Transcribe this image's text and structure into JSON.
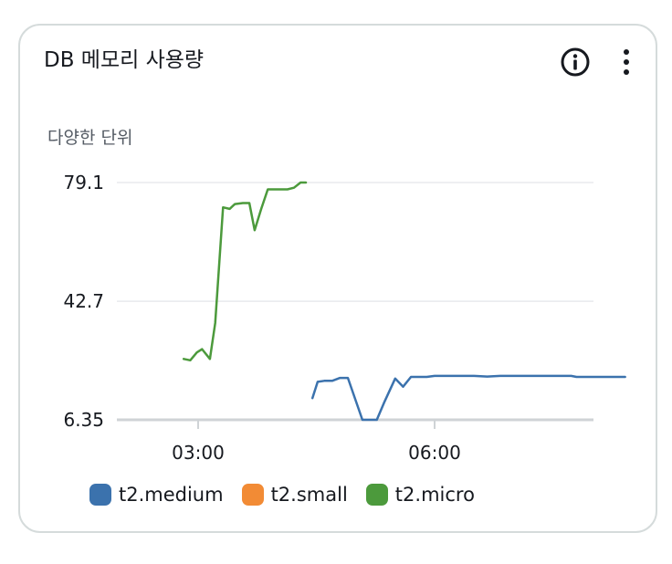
{
  "card": {
    "title": "DB 메모리 사용량",
    "unit_label": "다양한 단위"
  },
  "icons": {
    "info": "info-circle-icon",
    "more": "vertical-ellipsis-icon"
  },
  "colors": {
    "t2.medium": "#3b72ad",
    "t2.small": "#f28b35",
    "t2.micro": "#4c9a3c",
    "grid": "#e8eaed",
    "baseline": "#cfd3d6",
    "axis_text": "#16191f"
  },
  "chart_data": {
    "type": "line",
    "title": "DB 메모리 사용량",
    "ylabel": "다양한 단위",
    "ylim": [
      6.35,
      79.1
    ],
    "y_ticks": [
      "79.1",
      "42.7",
      "6.35"
    ],
    "x_ticks": [
      "03:00",
      "06:00"
    ],
    "grid": true,
    "legend_position": "bottom",
    "legend": [
      "t2.medium",
      "t2.small",
      "t2.micro"
    ],
    "series": [
      {
        "name": "t2.medium",
        "points": [
          [
            "04:27",
            13.0
          ],
          [
            "04:31",
            18.0
          ],
          [
            "04:36",
            18.3
          ],
          [
            "04:42",
            18.3
          ],
          [
            "04:48",
            19.2
          ],
          [
            "04:54",
            19.2
          ],
          [
            "05:05",
            6.35
          ],
          [
            "05:16",
            6.35
          ],
          [
            "05:22",
            12.0
          ],
          [
            "05:30",
            19.0
          ],
          [
            "05:36",
            16.5
          ],
          [
            "05:42",
            19.5
          ],
          [
            "05:48",
            19.5
          ],
          [
            "05:54",
            19.5
          ],
          [
            "06:00",
            19.8
          ],
          [
            "06:10",
            19.8
          ],
          [
            "06:20",
            19.8
          ],
          [
            "06:30",
            19.8
          ],
          [
            "06:40",
            19.6
          ],
          [
            "06:50",
            19.8
          ],
          [
            "07:10",
            19.8
          ],
          [
            "07:30",
            19.8
          ],
          [
            "07:44",
            19.8
          ],
          [
            "07:48",
            19.5
          ],
          [
            "08:10",
            19.5
          ],
          [
            "08:25",
            19.5
          ]
        ]
      },
      {
        "name": "t2.small",
        "points": []
      },
      {
        "name": "t2.micro",
        "points": [
          [
            "02:49",
            25.0
          ],
          [
            "02:54",
            24.6
          ],
          [
            "02:59",
            27.0
          ],
          [
            "03:03",
            28.0
          ],
          [
            "03:09",
            25.0
          ],
          [
            "03:13",
            36.0
          ],
          [
            "03:19",
            71.5
          ],
          [
            "03:24",
            71.0
          ],
          [
            "03:28",
            72.5
          ],
          [
            "03:34",
            72.8
          ],
          [
            "03:39",
            72.8
          ],
          [
            "03:43",
            64.5
          ],
          [
            "03:48",
            71.0
          ],
          [
            "03:53",
            77.0
          ],
          [
            "04:00",
            77.0
          ],
          [
            "04:08",
            77.0
          ],
          [
            "04:13",
            77.5
          ],
          [
            "04:18",
            79.1
          ],
          [
            "04:22",
            79.1
          ]
        ]
      }
    ]
  }
}
